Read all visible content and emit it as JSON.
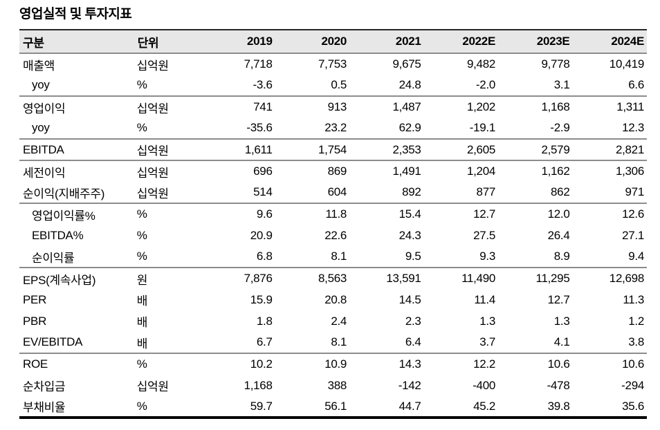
{
  "title": "영업실적 및 투자지표",
  "table": {
    "columns": [
      "구분",
      "단위",
      "2019",
      "2020",
      "2021",
      "2022E",
      "2023E",
      "2024E"
    ],
    "groups": [
      {
        "rows": [
          {
            "label": "매출액",
            "indent": false,
            "unit": "십억원",
            "values": [
              "7,718",
              "7,753",
              "9,675",
              "9,482",
              "9,778",
              "10,419"
            ]
          },
          {
            "label": "yoy",
            "indent": true,
            "unit": "%",
            "values": [
              "-3.6",
              "0.5",
              "24.8",
              "-2.0",
              "3.1",
              "6.6"
            ]
          }
        ]
      },
      {
        "rows": [
          {
            "label": "영업이익",
            "indent": false,
            "unit": "십억원",
            "values": [
              "741",
              "913",
              "1,487",
              "1,202",
              "1,168",
              "1,311"
            ]
          },
          {
            "label": "yoy",
            "indent": true,
            "unit": "%",
            "values": [
              "-35.6",
              "23.2",
              "62.9",
              "-19.1",
              "-2.9",
              "12.3"
            ]
          }
        ]
      },
      {
        "rows": [
          {
            "label": "EBITDA",
            "indent": false,
            "unit": "십억원",
            "values": [
              "1,611",
              "1,754",
              "2,353",
              "2,605",
              "2,579",
              "2,821"
            ]
          }
        ]
      },
      {
        "rows": [
          {
            "label": "세전이익",
            "indent": false,
            "unit": "십억원",
            "values": [
              "696",
              "869",
              "1,491",
              "1,204",
              "1,162",
              "1,306"
            ]
          },
          {
            "label": "순이익(지배주주)",
            "indent": false,
            "unit": "십억원",
            "values": [
              "514",
              "604",
              "892",
              "877",
              "862",
              "971"
            ]
          }
        ]
      },
      {
        "rows": [
          {
            "label": "영업이익률%",
            "indent": true,
            "unit": "%",
            "values": [
              "9.6",
              "11.8",
              "15.4",
              "12.7",
              "12.0",
              "12.6"
            ]
          },
          {
            "label": "EBITDA%",
            "indent": true,
            "unit": "%",
            "values": [
              "20.9",
              "22.6",
              "24.3",
              "27.5",
              "26.4",
              "27.1"
            ]
          },
          {
            "label": "순이익률",
            "indent": true,
            "unit": "%",
            "values": [
              "6.8",
              "8.1",
              "9.5",
              "9.3",
              "8.9",
              "9.4"
            ]
          }
        ]
      },
      {
        "rows": [
          {
            "label": "EPS(계속사업)",
            "indent": false,
            "unit": "원",
            "values": [
              "7,876",
              "8,563",
              "13,591",
              "11,490",
              "11,295",
              "12,698"
            ]
          },
          {
            "label": "PER",
            "indent": false,
            "unit": "배",
            "values": [
              "15.9",
              "20.8",
              "14.5",
              "11.4",
              "12.7",
              "11.3"
            ]
          },
          {
            "label": "PBR",
            "indent": false,
            "unit": "배",
            "values": [
              "1.8",
              "2.4",
              "2.3",
              "1.3",
              "1.3",
              "1.2"
            ]
          },
          {
            "label": "EV/EBITDA",
            "indent": false,
            "unit": "배",
            "values": [
              "6.7",
              "8.1",
              "6.4",
              "3.7",
              "4.1",
              "3.8"
            ]
          }
        ]
      },
      {
        "rows": [
          {
            "label": "ROE",
            "indent": false,
            "unit": "%",
            "values": [
              "10.2",
              "10.9",
              "14.3",
              "12.2",
              "10.6",
              "10.6"
            ]
          },
          {
            "label": "순차입금",
            "indent": false,
            "unit": "십억원",
            "values": [
              "1,168",
              "388",
              "-142",
              "-400",
              "-478",
              "-294"
            ]
          },
          {
            "label": "부채비율",
            "indent": false,
            "unit": "%",
            "values": [
              "59.7",
              "56.1",
              "44.7",
              "45.2",
              "39.8",
              "35.6"
            ]
          }
        ]
      }
    ],
    "colors": {
      "header_bg": "#e7e7e7",
      "border_top": "#262626",
      "border_group": "#8c8c8c",
      "border_bottom": "#000000"
    }
  }
}
